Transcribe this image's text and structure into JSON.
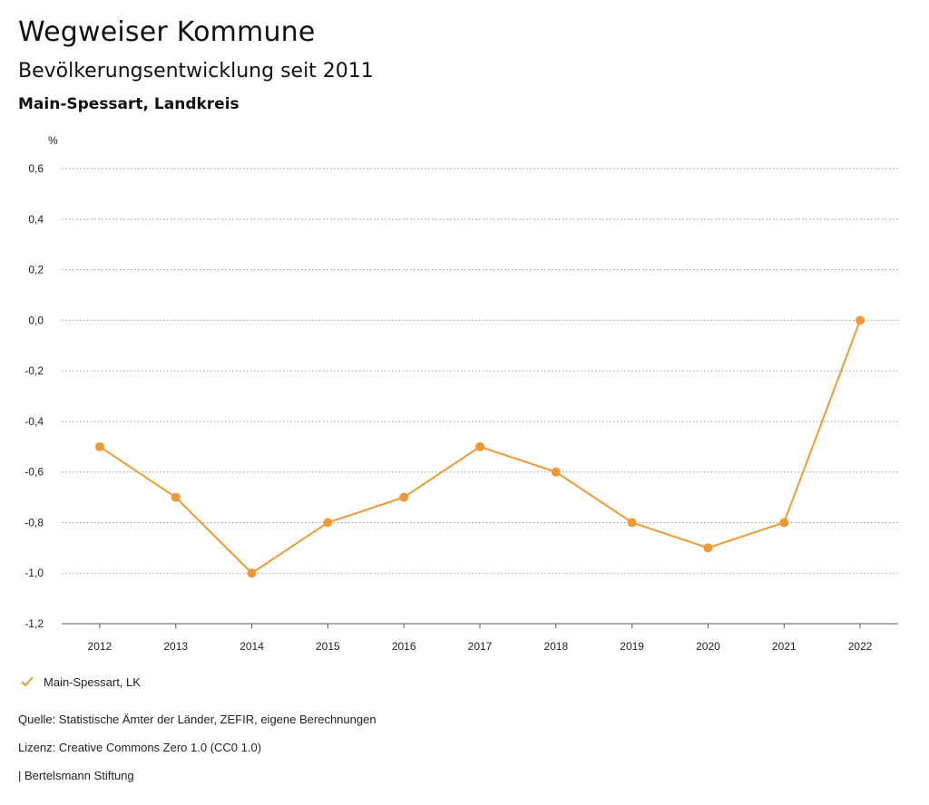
{
  "header": {
    "title": "Wegweiser Kommune",
    "subtitle": "Bevölkerungsentwicklung seit 2011",
    "region": "Main-Spessart, Landkreis"
  },
  "chart_data": {
    "type": "line",
    "title": "Bevölkerungsentwicklung seit 2011",
    "ylabel": "%",
    "xlabel": "",
    "x": [
      "2012",
      "2013",
      "2014",
      "2015",
      "2016",
      "2017",
      "2018",
      "2019",
      "2020",
      "2021",
      "2022"
    ],
    "series": [
      {
        "name": "Main-Spessart, LK",
        "color": "#ee9933",
        "values": [
          -0.5,
          -0.7,
          -1.0,
          -0.8,
          -0.7,
          -0.5,
          -0.6,
          -0.8,
          -0.9,
          -0.8,
          0.0
        ]
      }
    ],
    "ylim": [
      -1.2,
      0.6
    ],
    "yticks": [
      "0,6",
      "0,4",
      "0,2",
      "0,0",
      "-0,2",
      "-0,4",
      "-0,6",
      "-0,8",
      "-1,0",
      "-1,2"
    ],
    "ytick_values": [
      0.6,
      0.4,
      0.2,
      0.0,
      -0.2,
      -0.4,
      -0.6,
      -0.8,
      -1.0,
      -1.2
    ],
    "grid": true,
    "legend_position": "bottom-left"
  },
  "legend": {
    "icon": "check-icon",
    "label": "Main-Spessart, LK"
  },
  "footer": {
    "source": "Quelle: Statistische Ämter der Länder, ZEFIR, eigene Berechnungen",
    "license": "Lizenz: Creative Commons Zero 1.0 (CC0 1.0)",
    "publisher": "| Bertelsmann Stiftung"
  }
}
